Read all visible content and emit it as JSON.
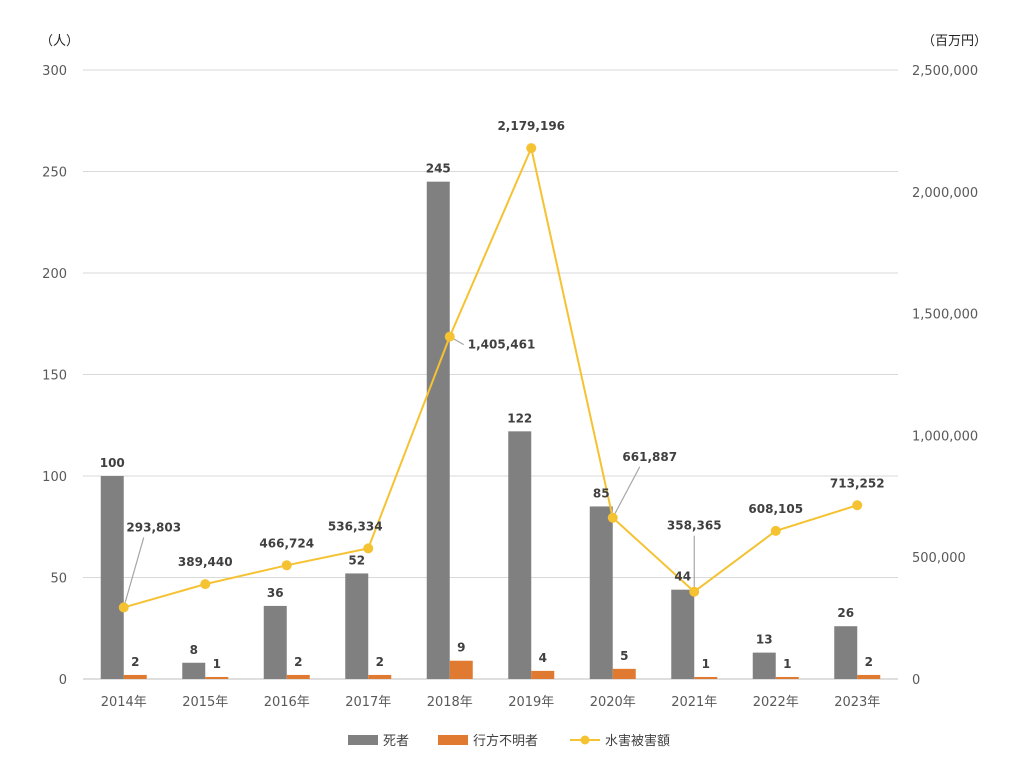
{
  "chart_data": {
    "type": "bar",
    "combo": "bar+line (dual axis)",
    "left_unit": "（人）",
    "right_unit": "（百万円）",
    "categories": [
      "2014年",
      "2015年",
      "2016年",
      "2017年",
      "2018年",
      "2019年",
      "2020年",
      "2021年",
      "2022年",
      "2023年"
    ],
    "left_axis": {
      "min": 0,
      "max": 300,
      "step": 50,
      "tick_labels": [
        "0",
        "50",
        "100",
        "150",
        "200",
        "250",
        "300"
      ]
    },
    "right_axis": {
      "min": 0,
      "max": 2500000,
      "step": 500000,
      "tick_labels": [
        "0",
        "500,000",
        "1,000,000",
        "1,500,000",
        "2,000,000",
        "2,500,000"
      ]
    },
    "series": [
      {
        "name": "死者",
        "kind": "bar",
        "axis": "left",
        "color": "#808080",
        "values": [
          100,
          8,
          36,
          52,
          245,
          122,
          85,
          44,
          13,
          26
        ],
        "labels": [
          "100",
          "8",
          "36",
          "52",
          "245",
          "122",
          "85",
          "44",
          "13",
          "26"
        ]
      },
      {
        "name": "行方不明者",
        "kind": "bar",
        "axis": "left",
        "color": "#E07A30",
        "values": [
          2,
          1,
          2,
          2,
          9,
          4,
          5,
          1,
          1,
          2
        ],
        "labels": [
          "2",
          "1",
          "2",
          "2",
          "9",
          "4",
          "5",
          "1",
          "1",
          "2"
        ]
      },
      {
        "name": "水害被害額",
        "kind": "line",
        "axis": "right",
        "color": "#F5C232",
        "values": [
          293803,
          389440,
          466724,
          536334,
          1405461,
          2179196,
          661887,
          358365,
          608105,
          713252
        ],
        "labels": [
          "293,803",
          "389,440",
          "466,724",
          "536,334",
          "1,405,461",
          "2,179,196",
          "661,887",
          "358,365",
          "608,105",
          "713,252"
        ]
      }
    ],
    "grid": true,
    "legend_position": "bottom-center"
  }
}
